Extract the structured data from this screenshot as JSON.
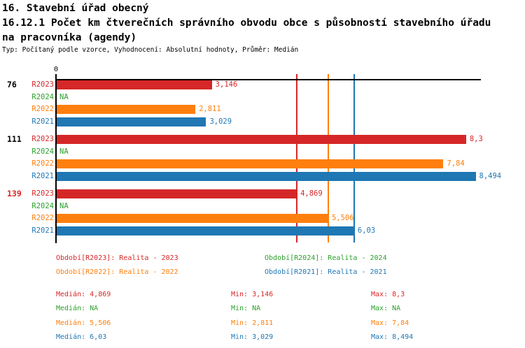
{
  "header": {
    "title": "16. Stavební úřad obecný",
    "subtitle_line1": "16.12.1 Počet km čtverečních správního obvodu obce s působností stavebního úřadu",
    "subtitle_line2": "na pracovníka (agendy)",
    "meta": "Typ: Počítaný podle vzorce, Vyhodnocení: Absolutní hodnoty, Průměr: Medián"
  },
  "colors": {
    "R2023": "#d62728",
    "R2024": "#2ca02c",
    "R2022": "#ff7f0e",
    "R2021": "#1f77b4",
    "highlight": "#d62728",
    "axis": "#000000"
  },
  "chart_data": {
    "type": "bar",
    "orientation": "horizontal",
    "title": "16.12.1 Počet km čtverečních správního obvodu obce s působností stavebního úřadu na pracovníka (agendy)",
    "xlabel": "",
    "ylabel": "",
    "xlim": [
      0,
      8.6
    ],
    "x_tick_labels": [
      "0"
    ],
    "grid": false,
    "series_order": [
      "R2023",
      "R2024",
      "R2022",
      "R2021"
    ],
    "groups": [
      {
        "label": "76",
        "highlight": false,
        "bars": [
          {
            "series": "R2023",
            "value": 3.146,
            "display": "3,146"
          },
          {
            "series": "R2024",
            "value": null,
            "display": "NA"
          },
          {
            "series": "R2022",
            "value": 2.811,
            "display": "2,811"
          },
          {
            "series": "R2021",
            "value": 3.029,
            "display": "3,029"
          }
        ]
      },
      {
        "label": "111",
        "highlight": false,
        "bars": [
          {
            "series": "R2023",
            "value": 8.3,
            "display": "8,3"
          },
          {
            "series": "R2024",
            "value": null,
            "display": "NA"
          },
          {
            "series": "R2022",
            "value": 7.84,
            "display": "7,84"
          },
          {
            "series": "R2021",
            "value": 8.494,
            "display": "8,494"
          }
        ]
      },
      {
        "label": "139",
        "highlight": true,
        "bars": [
          {
            "series": "R2023",
            "value": 4.869,
            "display": "4,869"
          },
          {
            "series": "R2024",
            "value": null,
            "display": "NA"
          },
          {
            "series": "R2022",
            "value": 5.506,
            "display": "5,506"
          },
          {
            "series": "R2021",
            "value": 6.03,
            "display": "6,03"
          }
        ]
      }
    ],
    "median_lines": [
      {
        "series": "R2023",
        "value": 4.869
      },
      {
        "series": "R2022",
        "value": 5.506
      },
      {
        "series": "R2021",
        "value": 6.03
      }
    ]
  },
  "legend": {
    "items": [
      {
        "series": "R2023",
        "label": "Období[R2023]: Realita - 2023"
      },
      {
        "series": "R2024",
        "label": "Období[R2024]: Realita - 2024"
      },
      {
        "series": "R2022",
        "label": "Období[R2022]: Realita - 2022"
      },
      {
        "series": "R2021",
        "label": "Období[R2021]: Realita - 2021"
      }
    ]
  },
  "stats": {
    "rows": [
      {
        "series": "R2023",
        "median": "Medián: 4,869",
        "min": "Min: 3,146",
        "max": "Max: 8,3"
      },
      {
        "series": "R2024",
        "median": "Medián: NA",
        "min": "Min: NA",
        "max": "Max: NA"
      },
      {
        "series": "R2022",
        "median": "Medián: 5,506",
        "min": "Min: 2,811",
        "max": "Max: 7,84"
      },
      {
        "series": "R2021",
        "median": "Medián: 6,03",
        "min": "Min: 3,029",
        "max": "Max: 8,494"
      }
    ]
  }
}
